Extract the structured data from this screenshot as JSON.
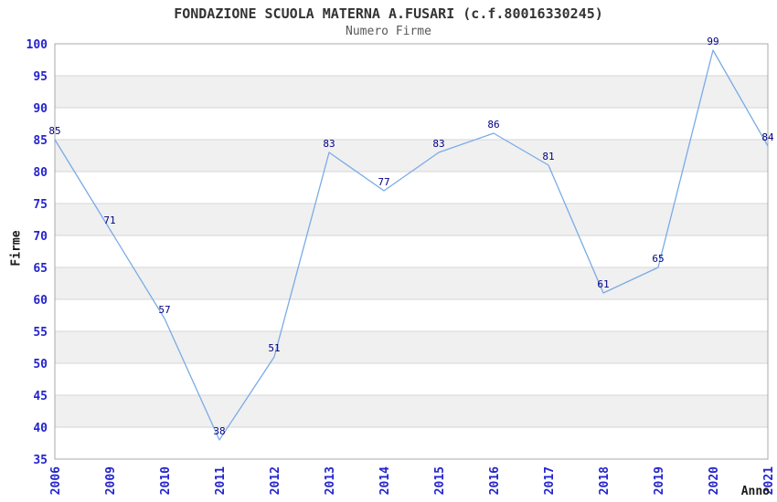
{
  "header": {
    "title": "FONDAZIONE SCUOLA MATERNA A.FUSARI (c.f.80016330245)",
    "subtitle": "Numero Firme"
  },
  "chart_data": {
    "type": "line",
    "title": "FONDAZIONE SCUOLA MATERNA A.FUSARI (c.f.80016330245)",
    "subtitle": "Numero Firme",
    "xlabel": "Anno",
    "ylabel": "Firme",
    "categories": [
      "2006",
      "2009",
      "2010",
      "2011",
      "2012",
      "2013",
      "2014",
      "2015",
      "2016",
      "2017",
      "2018",
      "2019",
      "2020",
      "2021"
    ],
    "values": [
      85,
      71,
      57,
      38,
      51,
      83,
      77,
      83,
      86,
      81,
      61,
      65,
      99,
      84
    ],
    "ylim": [
      35,
      100
    ],
    "ytick_step": 5,
    "grid": true,
    "legend": "none",
    "band_pattern": "alternating-horizontal",
    "colors": {
      "line": "#7aabe6",
      "tick_label": "#2424cc",
      "data_label": "#000080",
      "band": "#f0f0f0",
      "gridline": "#d6d6d6",
      "border": "#a8a8a8",
      "title": "#333333",
      "subtitle": "#595959",
      "axis_title": "#1a1a1a",
      "background": "#ffffff"
    }
  }
}
